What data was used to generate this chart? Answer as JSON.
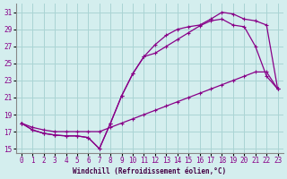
{
  "xlabel": "Windchill (Refroidissement éolien,°C)",
  "background_color": "#d4eeee",
  "grid_color": "#aad4d4",
  "line_color": "#880088",
  "xlim": [
    -0.5,
    23.5
  ],
  "ylim": [
    14.5,
    32
  ],
  "yticks": [
    15,
    17,
    19,
    21,
    23,
    25,
    27,
    29,
    31
  ],
  "xticks": [
    0,
    1,
    2,
    3,
    4,
    5,
    6,
    7,
    8,
    9,
    10,
    11,
    12,
    13,
    14,
    15,
    16,
    17,
    18,
    19,
    20,
    21,
    22,
    23
  ],
  "line_upper_x": [
    0,
    1,
    2,
    3,
    4,
    5,
    6,
    7,
    8,
    9,
    10,
    11,
    12,
    13,
    14,
    15,
    16,
    17,
    18,
    19,
    20,
    21,
    22,
    23
  ],
  "line_upper_y": [
    18.0,
    17.2,
    16.8,
    16.6,
    16.5,
    16.5,
    16.3,
    15.0,
    18.0,
    21.2,
    23.8,
    25.8,
    27.2,
    28.3,
    29.0,
    29.3,
    29.5,
    30.2,
    31.0,
    30.8,
    30.2,
    30.0,
    29.5,
    22.0
  ],
  "line_mid_x": [
    0,
    1,
    2,
    3,
    4,
    5,
    6,
    7,
    8,
    9,
    10,
    11,
    12,
    13,
    14,
    15,
    16,
    17,
    18,
    19,
    20,
    21,
    22,
    23
  ],
  "line_mid_y": [
    18.0,
    17.2,
    16.8,
    16.6,
    16.5,
    16.5,
    16.3,
    15.0,
    18.0,
    21.2,
    23.8,
    25.8,
    26.2,
    27.0,
    27.8,
    28.6,
    29.4,
    30.0,
    30.2,
    29.5,
    29.3,
    27.0,
    23.5,
    22.0
  ],
  "line_low_x": [
    0,
    1,
    2,
    3,
    4,
    5,
    6,
    7,
    8,
    9,
    10,
    11,
    12,
    13,
    14,
    15,
    16,
    17,
    18,
    19,
    20,
    21,
    22,
    23
  ],
  "line_low_y": [
    18.0,
    17.5,
    17.2,
    17.0,
    17.0,
    17.0,
    17.0,
    17.0,
    17.5,
    18.0,
    18.5,
    19.0,
    19.5,
    20.0,
    20.5,
    21.0,
    21.5,
    22.0,
    22.5,
    23.0,
    23.5,
    24.0,
    24.0,
    22.0
  ],
  "marker": "+"
}
